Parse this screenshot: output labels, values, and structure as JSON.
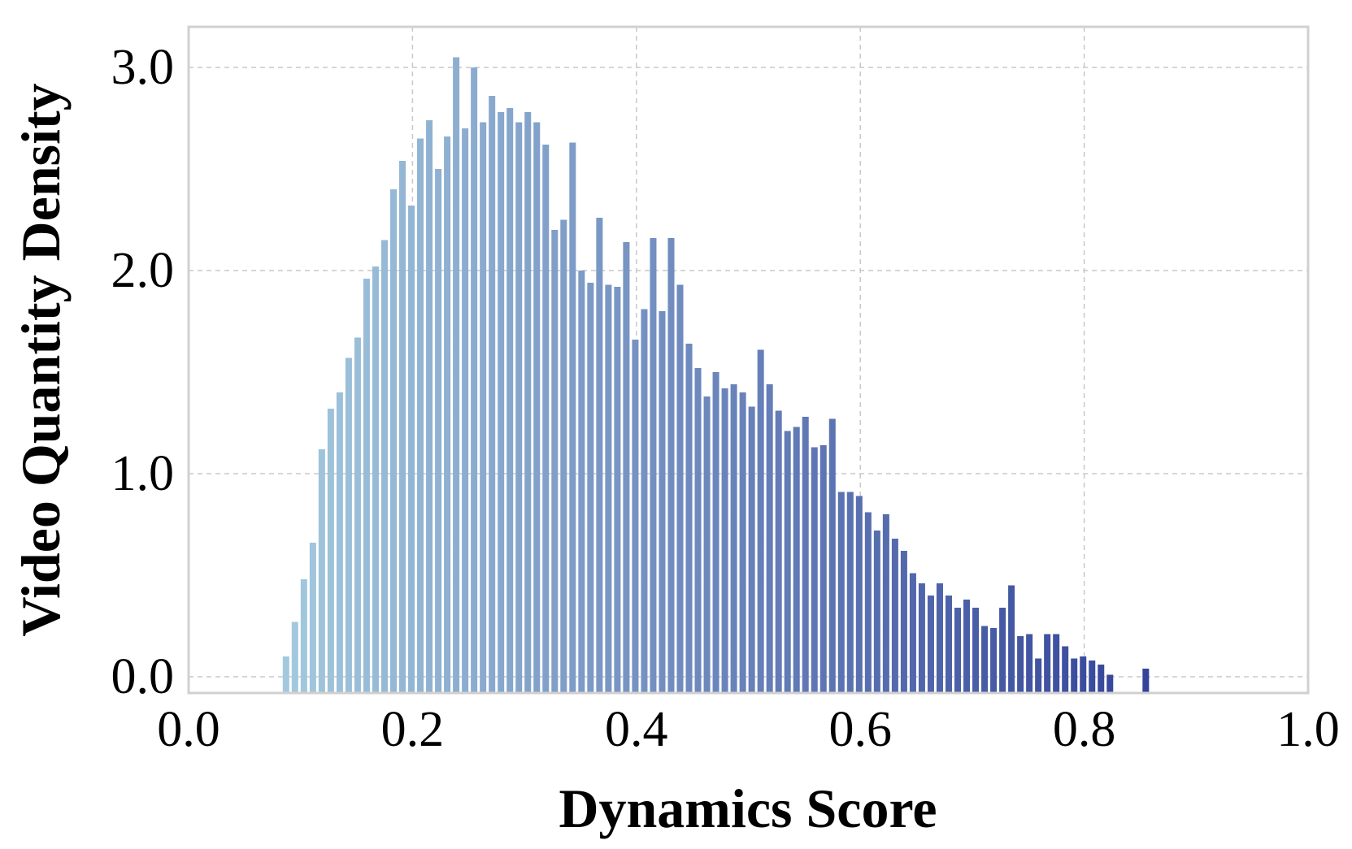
{
  "chart_data": {
    "type": "bar",
    "xlabel": "Dynamics Score",
    "ylabel": "Video Quantity Density",
    "xlim": [
      0.0,
      1.0
    ],
    "ylim": [
      -0.08,
      3.2
    ],
    "xticks": [
      0.0,
      0.2,
      0.4,
      0.6,
      0.8,
      1.0
    ],
    "xtick_labels": [
      "0.0",
      "0.2",
      "0.4",
      "0.6",
      "0.8",
      "1.0"
    ],
    "yticks": [
      0.0,
      1.0,
      2.0,
      3.0
    ],
    "ytick_labels": [
      "0.0",
      "1.0",
      "2.0",
      "3.0"
    ],
    "grid": true,
    "color_gradient": [
      "#b0d8e6",
      "#1e2a8c"
    ],
    "bin_width": 0.008,
    "x": [
      0.087,
      0.095,
      0.103,
      0.111,
      0.119,
      0.127,
      0.135,
      0.143,
      0.151,
      0.159,
      0.167,
      0.175,
      0.183,
      0.191,
      0.199,
      0.207,
      0.215,
      0.223,
      0.231,
      0.239,
      0.247,
      0.255,
      0.263,
      0.271,
      0.279,
      0.287,
      0.295,
      0.303,
      0.311,
      0.319,
      0.327,
      0.335,
      0.343,
      0.351,
      0.359,
      0.367,
      0.375,
      0.383,
      0.391,
      0.399,
      0.407,
      0.415,
      0.423,
      0.431,
      0.439,
      0.447,
      0.455,
      0.463,
      0.471,
      0.479,
      0.487,
      0.495,
      0.503,
      0.511,
      0.519,
      0.527,
      0.535,
      0.543,
      0.551,
      0.559,
      0.567,
      0.575,
      0.583,
      0.591,
      0.599,
      0.607,
      0.615,
      0.623,
      0.631,
      0.639,
      0.647,
      0.655,
      0.663,
      0.671,
      0.679,
      0.687,
      0.695,
      0.703,
      0.711,
      0.719,
      0.727,
      0.735,
      0.743,
      0.751,
      0.759,
      0.767,
      0.775,
      0.783,
      0.791,
      0.799,
      0.807,
      0.815,
      0.823,
      0.831,
      0.839,
      0.847,
      0.855,
      0.863,
      0.871,
      0.879,
      0.887
    ],
    "values": [
      0.1,
      0.27,
      0.48,
      0.66,
      1.12,
      1.32,
      1.4,
      1.57,
      1.67,
      1.96,
      2.02,
      2.15,
      2.4,
      2.54,
      2.32,
      2.65,
      2.74,
      2.5,
      2.66,
      3.05,
      2.7,
      3.0,
      2.73,
      2.86,
      2.78,
      2.8,
      2.73,
      2.78,
      2.73,
      2.62,
      2.2,
      2.25,
      2.63,
      2.0,
      1.94,
      2.26,
      1.93,
      1.92,
      2.14,
      1.66,
      1.81,
      2.16,
      1.8,
      2.16,
      1.93,
      1.64,
      1.52,
      1.38,
      1.5,
      1.42,
      1.44,
      1.4,
      1.33,
      1.61,
      1.44,
      1.31,
      1.21,
      1.23,
      1.28,
      1.13,
      1.14,
      1.27,
      0.91,
      0.91,
      0.89,
      0.81,
      0.72,
      0.8,
      0.68,
      0.62,
      0.51,
      0.46,
      0.4,
      0.46,
      0.4,
      0.34,
      0.38,
      0.34,
      0.25,
      0.24,
      0.34,
      0.45,
      0.2,
      0.21,
      0.09,
      0.21,
      0.21,
      0.15,
      0.09,
      0.1,
      0.08,
      0.06,
      0.01,
      0.0,
      0.0,
      0.0,
      0.04,
      0.0,
      0.0,
      0.0,
      0.0
    ]
  }
}
